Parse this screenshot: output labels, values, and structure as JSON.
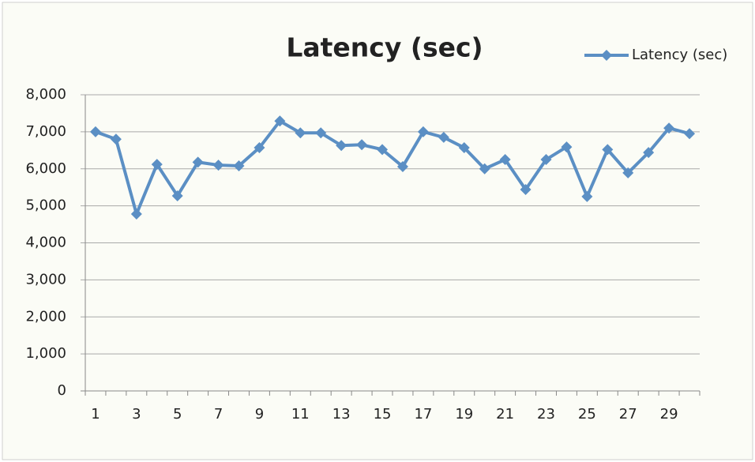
{
  "chart_data": {
    "type": "line",
    "title": "Latency (sec)",
    "categories": [
      "1",
      null,
      "3",
      null,
      "5",
      null,
      "7",
      null,
      "9",
      null,
      "11",
      null,
      "13",
      null,
      "15",
      null,
      "17",
      null,
      "19",
      null,
      "21",
      null,
      "23",
      null,
      "25",
      null,
      "27",
      null,
      "29",
      null
    ],
    "series": [
      {
        "name": "Latency (sec)",
        "color": "#5b8fc4",
        "values": [
          7000,
          6800,
          4780,
          6120,
          5270,
          6180,
          6100,
          6080,
          6570,
          7290,
          6970,
          6970,
          6630,
          6650,
          6520,
          6060,
          7000,
          6850,
          6570,
          6000,
          6250,
          5440,
          6250,
          6590,
          5250,
          6520,
          5890,
          6440,
          7100,
          6950
        ]
      }
    ],
    "ylim": [
      0,
      8000
    ],
    "yticks": [
      0,
      {
        "value": 1000,
        "label": "1,000"
      },
      {
        "value": 2000,
        "label": "2,000"
      },
      {
        "value": 3000,
        "label": "3,000"
      },
      {
        "value": 4000,
        "label": "4,000"
      },
      {
        "value": 5000,
        "label": "5,000"
      },
      {
        "value": 6000,
        "label": "6,000"
      },
      {
        "value": 7000,
        "label": "7,000"
      },
      {
        "value": 8000,
        "label": "8,000"
      }
    ],
    "grid": true,
    "legend": "top-right"
  }
}
